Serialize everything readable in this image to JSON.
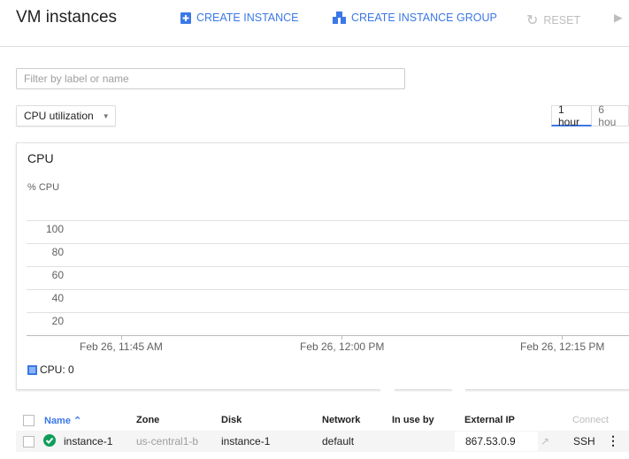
{
  "header": {
    "title": "VM instances",
    "create_instance": "CREATE INSTANCE",
    "create_group": "CREATE INSTANCE GROUP",
    "reset": "RESET"
  },
  "filter": {
    "placeholder": "Filter by label or name",
    "value": ""
  },
  "metric_select": {
    "value": "CPU utilization"
  },
  "time_range": {
    "options": [
      "1 hour",
      "6 hou"
    ],
    "selected": "1 hour"
  },
  "colors": {
    "accent": "#3b78e7",
    "status_ok": "#0f9d58"
  },
  "chart_data": {
    "type": "line",
    "title": "CPU",
    "ylabel": "% CPU",
    "ylim": [
      0,
      100
    ],
    "yticks": [
      "100",
      "80",
      "60",
      "40",
      "20"
    ],
    "xticks": [
      "Feb 26, 11:45 AM",
      "Feb 26, 12:00 PM",
      "Feb 26, 12:15 PM"
    ],
    "grid": true,
    "legend": "bottom-left",
    "series": [
      {
        "name": "CPU",
        "legend_label": "CPU: 0",
        "values": []
      }
    ]
  },
  "table": {
    "columns": [
      "Name",
      "Zone",
      "Disk",
      "Network",
      "In use by",
      "External IP",
      "Connect"
    ],
    "sort": {
      "column": "Name",
      "direction": "asc"
    },
    "rows": [
      {
        "status": "running",
        "name": "instance-1",
        "zone": "us-central1-b",
        "disk": "instance-1",
        "network": "default",
        "in_use_by": "",
        "external_ip": "867.53.0.9",
        "connect": "SSH"
      }
    ]
  }
}
